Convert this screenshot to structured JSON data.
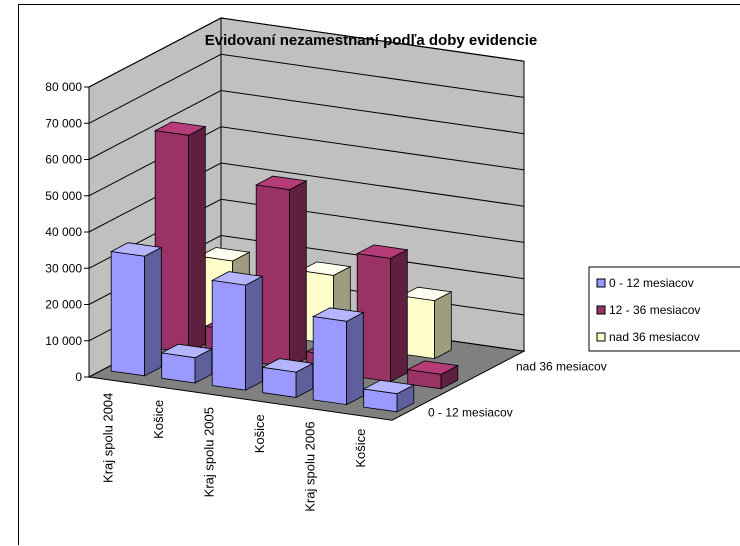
{
  "chart_data": {
    "type": "bar",
    "title": "Evidovaní nezamestnaní podľa doby evidencie",
    "categories": [
      "Kraj spolu 2004",
      "Košice",
      "Kraj spolu 2005",
      "Košice",
      "Kraj spolu 2006",
      "Košice"
    ],
    "series": [
      {
        "name": "0 - 12 mesiacov",
        "values": [
          33000,
          7000,
          29000,
          7000,
          23000,
          5000
        ],
        "color": "#9999ff"
      },
      {
        "name": "12 - 36 mesiacov",
        "values": [
          60000,
          8000,
          49000,
          5000,
          34000,
          4000
        ],
        "color": "#993366"
      },
      {
        "name": "nad 36 mesiacov",
        "values": [
          19000,
          0,
          19000,
          0,
          16000,
          0
        ],
        "color": "#ffffcc"
      }
    ],
    "depth_labels": [
      "0 - 12 mesiacov",
      "nad 36 mesiacov"
    ],
    "yticks": [
      "80 000",
      "70 000",
      "60 000",
      "50 000",
      "40 000",
      "30 000",
      "20 000",
      "10 000",
      "0"
    ],
    "ylim": [
      0,
      80000
    ],
    "grid": true,
    "legend_position": "right"
  }
}
